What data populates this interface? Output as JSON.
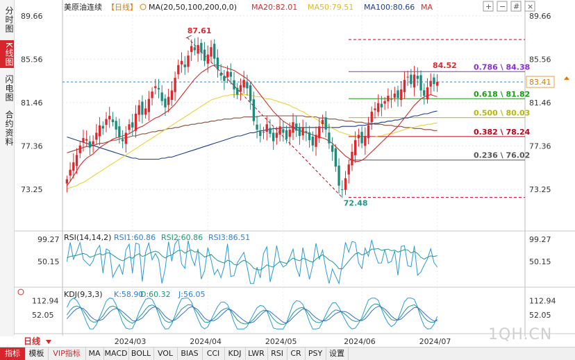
{
  "sidebar": {
    "tabs": [
      {
        "label": "分时图",
        "active": false
      },
      {
        "label": "K线图",
        "active": true
      },
      {
        "label": "闪电图",
        "active": false
      },
      {
        "label": "合约资料",
        "active": false
      }
    ]
  },
  "header": {
    "instrument": "美原油连续",
    "period": "【日线】",
    "ma_label": "MA(20,50,100,200,0,0)",
    "ma20": "MA20:82.01",
    "ma50": "MA50:79.51",
    "ma100": "MA100:80.66",
    "ma_suffix": "MA"
  },
  "toolbar": {
    "icons": [
      "zoom-in-icon",
      "zoom-out-icon",
      "grid-icon",
      "close-icon"
    ]
  },
  "chart_data": {
    "type": "candlestick",
    "main": {
      "y_ticks": [
        "89.66",
        "85.56",
        "81.46",
        "77.36",
        "73.25"
      ],
      "y_tick_values": [
        89.66,
        85.56,
        81.46,
        77.36,
        73.25
      ],
      "ylim": [
        72.0,
        90.5
      ],
      "x_labels": [
        "2024/03",
        "2024/04",
        "2024/05",
        "2024/06",
        "2024/07"
      ],
      "current_price": "83.41",
      "current_value": 83.41,
      "high_label": "87.61",
      "high_value": 87.61,
      "low_label": "72.48",
      "low_value": 72.48,
      "last_high_label": "84.52",
      "last_high_value": 84.52,
      "fibonacci": [
        {
          "label": "0.786 \\ 84.38",
          "value": 84.38,
          "color": "#8a2be2"
        },
        {
          "label": "0.618 \\ 81.82",
          "value": 81.82,
          "color": "#1a9a1a"
        },
        {
          "label": "0.500 \\ 80.03",
          "value": 80.03,
          "color": "#b8b800"
        },
        {
          "label": "0.382 \\ 78.24",
          "value": 78.24,
          "color": "#c0001a"
        },
        {
          "label": "0.236 \\ 76.02",
          "value": 76.02,
          "color": "#555555"
        }
      ],
      "closes": [
        74.2,
        75.1,
        75.8,
        76.5,
        77.4,
        78.1,
        78.0,
        77.2,
        77.8,
        78.6,
        79.3,
        79.0,
        79.9,
        80.2,
        79.6,
        78.9,
        78.2,
        77.8,
        78.6,
        79.4,
        79.1,
        80.4,
        81.2,
        80.3,
        80.9,
        81.8,
        82.5,
        83.0,
        82.7,
        81.6,
        81.0,
        82.0,
        82.6,
        83.8,
        85.0,
        85.4,
        84.8,
        85.9,
        86.8,
        86.4,
        86.9,
        86.2,
        85.4,
        86.0,
        86.7,
        85.6,
        84.6,
        84.0,
        83.5,
        84.4,
        83.9,
        82.7,
        82.2,
        83.1,
        83.6,
        82.8,
        81.6,
        79.7,
        78.9,
        78.3,
        78.7,
        79.4,
        78.5,
        77.8,
        78.6,
        79.2,
        78.6,
        78.0,
        78.9,
        79.6,
        78.8,
        78.3,
        79.1,
        78.6,
        77.9,
        77.4,
        78.4,
        79.2,
        79.8,
        78.9,
        77.6,
        76.8,
        75.4,
        73.6,
        73.2,
        74.3,
        75.6,
        76.8,
        77.9,
        78.4,
        77.6,
        78.3,
        79.3,
        80.6,
        80.9,
        81.4,
        81.0,
        81.6,
        82.1,
        81.8,
        82.3,
        81.9,
        82.7,
        83.6,
        83.9,
        83.2,
        84.1,
        83.7,
        82.6,
        82.1,
        82.9,
        83.5,
        83.2,
        83.41
      ],
      "ma20": [
        73.6,
        74.0,
        74.5,
        75.0,
        75.5,
        75.9,
        76.2,
        76.4,
        76.6,
        76.9,
        77.2,
        77.4,
        77.6,
        77.8,
        78.0,
        78.1,
        78.2,
        78.3,
        78.4,
        78.5,
        78.7,
        78.9,
        79.1,
        79.2,
        79.4,
        79.6,
        79.8,
        80.0,
        80.1,
        80.3,
        80.5,
        80.7,
        81.0,
        81.3,
        81.7,
        82.1,
        82.5,
        82.9,
        83.3,
        83.7,
        84.0,
        84.3,
        84.5,
        84.7,
        84.9,
        85.0,
        85.0,
        84.9,
        84.8,
        84.7,
        84.6,
        84.5,
        84.3,
        84.1,
        83.9,
        83.7,
        83.4,
        83.0,
        82.6,
        82.2,
        81.8,
        81.4,
        81.0,
        80.6,
        80.3,
        80.0,
        79.7,
        79.5,
        79.3,
        79.1,
        78.9,
        78.8,
        78.7,
        78.6,
        78.5,
        78.4,
        78.3,
        78.2,
        78.1,
        78.0,
        77.8,
        77.6,
        77.3,
        77.0,
        76.7,
        76.4,
        76.2,
        76.0,
        75.9,
        75.9,
        76.0,
        76.2,
        76.5,
        76.8,
        77.1,
        77.4,
        77.7,
        78.0,
        78.3,
        78.6,
        78.9,
        79.2,
        79.6,
        80.0,
        80.4,
        80.8,
        81.2,
        81.5,
        81.8,
        82.0,
        82.1,
        82.2,
        82.1,
        82.01
      ],
      "ma50": [
        73.3,
        73.4,
        73.5,
        73.6,
        73.8,
        73.9,
        74.1,
        74.3,
        74.5,
        74.7,
        74.9,
        75.1,
        75.3,
        75.5,
        75.7,
        75.9,
        76.1,
        76.3,
        76.5,
        76.7,
        76.9,
        77.1,
        77.3,
        77.5,
        77.7,
        77.9,
        78.1,
        78.3,
        78.5,
        78.7,
        78.9,
        79.1,
        79.3,
        79.5,
        79.7,
        79.9,
        80.1,
        80.3,
        80.5,
        80.7,
        80.9,
        81.1,
        81.3,
        81.5,
        81.7,
        81.8,
        81.9,
        82.0,
        82.1,
        82.1,
        82.2,
        82.2,
        82.2,
        82.2,
        82.2,
        82.2,
        82.1,
        82.1,
        82.0,
        82.0,
        81.9,
        81.8,
        81.8,
        81.7,
        81.6,
        81.5,
        81.4,
        81.3,
        81.2,
        81.0,
        80.9,
        80.7,
        80.6,
        80.4,
        80.2,
        80.1,
        79.9,
        79.7,
        79.5,
        79.4,
        79.2,
        79.0,
        78.9,
        78.7,
        78.6,
        78.5,
        78.4,
        78.3,
        78.3,
        78.2,
        78.2,
        78.2,
        78.2,
        78.2,
        78.2,
        78.3,
        78.3,
        78.4,
        78.5,
        78.5,
        78.6,
        78.7,
        78.8,
        78.9,
        79.0,
        79.1,
        79.1,
        79.2,
        79.3,
        79.3,
        79.4,
        79.4,
        79.5,
        79.51
      ],
      "ma100": [
        78.2,
        78.1,
        78.0,
        77.9,
        77.8,
        77.7,
        77.6,
        77.5,
        77.4,
        77.3,
        77.2,
        77.1,
        77.0,
        76.9,
        76.8,
        76.7,
        76.6,
        76.5,
        76.4,
        76.3,
        76.2,
        76.2,
        76.1,
        76.1,
        76.1,
        76.1,
        76.1,
        76.1,
        76.1,
        76.2,
        76.2,
        76.3,
        76.3,
        76.4,
        76.5,
        76.6,
        76.7,
        76.8,
        76.9,
        77.0,
        77.1,
        77.2,
        77.3,
        77.4,
        77.5,
        77.6,
        77.7,
        77.8,
        77.9,
        78.0,
        78.1,
        78.2,
        78.3,
        78.3,
        78.4,
        78.5,
        78.6,
        78.6,
        78.7,
        78.8,
        78.8,
        78.9,
        78.9,
        79.0,
        79.0,
        79.0,
        79.1,
        79.1,
        79.1,
        79.1,
        79.1,
        79.1,
        79.1,
        79.1,
        79.1,
        79.1,
        79.1,
        79.1,
        79.1,
        79.1,
        79.1,
        79.1,
        79.1,
        79.1,
        79.2,
        79.2,
        79.2,
        79.2,
        79.2,
        79.3,
        79.3,
        79.3,
        79.4,
        79.4,
        79.5,
        79.5,
        79.6,
        79.6,
        79.7,
        79.7,
        79.8,
        79.8,
        79.9,
        80.0,
        80.0,
        80.1,
        80.2,
        80.2,
        80.3,
        80.4,
        80.4,
        80.5,
        80.6,
        80.66
      ],
      "ma200": [
        76.7,
        76.8,
        76.9,
        77.0,
        77.1,
        77.2,
        77.3,
        77.3,
        77.4,
        77.5,
        77.6,
        77.6,
        77.7,
        77.8,
        77.9,
        77.9,
        78.0,
        78.1,
        78.1,
        78.2,
        78.3,
        78.3,
        78.4,
        78.5,
        78.5,
        78.6,
        78.7,
        78.7,
        78.8,
        78.8,
        78.9,
        79.0,
        79.0,
        79.1,
        79.1,
        79.2,
        79.3,
        79.3,
        79.4,
        79.4,
        79.5,
        79.5,
        79.6,
        79.6,
        79.7,
        79.7,
        79.8,
        79.8,
        79.9,
        79.9,
        79.9,
        80.0,
        80.0,
        80.0,
        80.1,
        80.1,
        80.1,
        80.1,
        80.1,
        80.2,
        80.2,
        80.2,
        80.2,
        80.2,
        80.2,
        80.2,
        80.2,
        80.2,
        80.2,
        80.2,
        80.2,
        80.2,
        80.2,
        80.1,
        80.1,
        80.1,
        80.1,
        80.0,
        80.0,
        80.0,
        79.9,
        79.9,
        79.9,
        79.8,
        79.8,
        79.7,
        79.7,
        79.7,
        79.6,
        79.6,
        79.6,
        79.5,
        79.5,
        79.5,
        79.4,
        79.4,
        79.4,
        79.3,
        79.3,
        79.3,
        79.2,
        79.2,
        79.2,
        79.1,
        79.1,
        79.1,
        79.0,
        79.0,
        79.0,
        78.9,
        78.9,
        78.9,
        78.8,
        78.8
      ]
    },
    "rsi": {
      "label": "RSI(14,14,2)",
      "rsi1": "RSI1:60.86",
      "rsi2": "RSI2:60.86",
      "rsi3": "RSI3:86.51",
      "y_ticks": [
        "99.27",
        "50.15"
      ],
      "y_tick_values": [
        99.27,
        50.15
      ],
      "ylim": [
        0,
        110
      ]
    },
    "kdj": {
      "label": "KDJ(9,3,3)",
      "k": "K:58.90",
      "d": "D:60.32",
      "j": "J:56.05",
      "y_ticks": [
        "112.94",
        "52.05"
      ],
      "y_tick_values": [
        112.94,
        52.05
      ],
      "ylim": [
        -10,
        130
      ]
    }
  },
  "footer": {
    "period_label": "日线",
    "tabs": [
      "指标",
      "模板",
      "VIP指标",
      "MA",
      "MACD",
      "BOLL",
      "VOL",
      "BIAS",
      "CCI",
      "KDJ",
      "LWR",
      "RSI",
      "CR",
      "PSY",
      "设置"
    ]
  },
  "watermark": "1QH.CN"
}
